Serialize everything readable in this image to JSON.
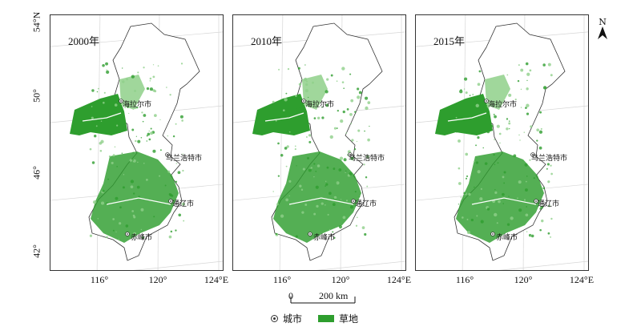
{
  "panels": [
    {
      "year_label": "2000年"
    },
    {
      "year_label": "2010年"
    },
    {
      "year_label": "2015年"
    }
  ],
  "cities": [
    "海拉尔市",
    "乌兰浩特市",
    "通辽市",
    "赤峰市"
  ],
  "x_ticks": [
    "116°",
    "120°",
    "124°E"
  ],
  "y_ticks": [
    "54°N",
    "50°",
    "46°",
    "42°"
  ],
  "north_arrow": {
    "letter": "N"
  },
  "scale_bar": {
    "zero": "0",
    "distance": "200 km"
  },
  "legend": {
    "city": "城市",
    "grassland": "草地"
  },
  "colors": {
    "grassland": "#2e9e2e",
    "grassland_light": "#8fd08a",
    "outline": "#333333",
    "graticule": "#d6d6d6"
  }
}
